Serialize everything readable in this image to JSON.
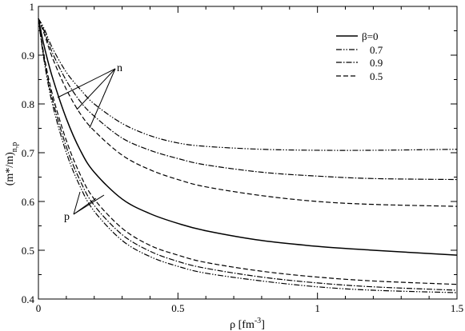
{
  "chart_data": {
    "type": "line",
    "xlabel": "ρ [fm",
    "xlabel_sup": "-3",
    "xlabel_end": "]",
    "ylabel": "(m*/m)",
    "ylabel_sub": "n,p",
    "xlim": [
      0,
      1.5
    ],
    "ylim": [
      0.4,
      1.0
    ],
    "xticks": [
      0,
      0.5,
      1,
      1.5
    ],
    "xtick_labels": [
      "0",
      "0.5",
      "1",
      "1.5"
    ],
    "yticks": [
      0.4,
      0.5,
      0.6,
      0.7,
      0.8,
      0.9,
      1.0
    ],
    "ytick_labels": [
      "0.4",
      "0.5",
      "0.6",
      "0.7",
      "0.8",
      "0.9",
      "1"
    ],
    "grid": false,
    "legend_position": "top-right",
    "legend": [
      {
        "label": "β=0",
        "style": "solid"
      },
      {
        "label": "0.7",
        "style": "dash-dot-dot"
      },
      {
        "label": "0.9",
        "style": "dash-dot"
      },
      {
        "label": "0.5",
        "style": "dashed"
      }
    ],
    "annotations": [
      {
        "text": "n",
        "points_to": "neutron curves (upper)"
      },
      {
        "text": "p",
        "points_to": "proton curves (lower)"
      }
    ],
    "series": [
      {
        "name": "β=0",
        "style": "solid",
        "group": "both",
        "x": [
          0.0,
          0.02,
          0.05,
          0.1,
          0.15,
          0.2,
          0.3,
          0.4,
          0.5,
          0.6,
          0.8,
          1.0,
          1.2,
          1.5
        ],
        "y": [
          0.975,
          0.92,
          0.855,
          0.77,
          0.705,
          0.66,
          0.605,
          0.575,
          0.555,
          0.54,
          0.52,
          0.508,
          0.5,
          0.49
        ]
      },
      {
        "name": "n, β=0.7",
        "style": "dash-dot-dot",
        "group": "n",
        "x": [
          0.0,
          0.02,
          0.05,
          0.1,
          0.15,
          0.2,
          0.3,
          0.4,
          0.5,
          0.6,
          0.8,
          1.0,
          1.2,
          1.5
        ],
        "y": [
          0.975,
          0.955,
          0.915,
          0.865,
          0.83,
          0.8,
          0.76,
          0.735,
          0.72,
          0.713,
          0.707,
          0.705,
          0.705,
          0.707
        ]
      },
      {
        "name": "n, β=0.9",
        "style": "dash-dot",
        "group": "n",
        "x": [
          0.0,
          0.02,
          0.05,
          0.1,
          0.15,
          0.2,
          0.3,
          0.4,
          0.5,
          0.6,
          0.8,
          1.0,
          1.2,
          1.5
        ],
        "y": [
          0.975,
          0.95,
          0.905,
          0.848,
          0.805,
          0.775,
          0.73,
          0.705,
          0.688,
          0.675,
          0.66,
          0.652,
          0.647,
          0.645
        ]
      },
      {
        "name": "n, β=0.5",
        "style": "dashed",
        "group": "n",
        "x": [
          0.0,
          0.02,
          0.05,
          0.1,
          0.15,
          0.2,
          0.3,
          0.4,
          0.5,
          0.6,
          0.8,
          1.0,
          1.2,
          1.5
        ],
        "y": [
          0.975,
          0.945,
          0.895,
          0.83,
          0.78,
          0.745,
          0.695,
          0.665,
          0.645,
          0.63,
          0.612,
          0.6,
          0.594,
          0.59
        ]
      },
      {
        "name": "p, β=0.5",
        "style": "dashed",
        "group": "p",
        "x": [
          0.0,
          0.02,
          0.05,
          0.1,
          0.15,
          0.2,
          0.3,
          0.4,
          0.5,
          0.6,
          0.8,
          1.0,
          1.2,
          1.5
        ],
        "y": [
          0.975,
          0.9,
          0.82,
          0.725,
          0.655,
          0.605,
          0.545,
          0.51,
          0.49,
          0.475,
          0.457,
          0.445,
          0.437,
          0.43
        ]
      },
      {
        "name": "p, β=0.9",
        "style": "dash-dot",
        "group": "p",
        "x": [
          0.0,
          0.02,
          0.05,
          0.1,
          0.15,
          0.2,
          0.3,
          0.4,
          0.5,
          0.6,
          0.8,
          1.0,
          1.2,
          1.5
        ],
        "y": [
          0.975,
          0.895,
          0.81,
          0.712,
          0.642,
          0.592,
          0.532,
          0.498,
          0.477,
          0.463,
          0.445,
          0.433,
          0.425,
          0.418
        ]
      },
      {
        "name": "p, β=0.7",
        "style": "dash-dot-dot",
        "group": "p",
        "x": [
          0.0,
          0.02,
          0.05,
          0.1,
          0.15,
          0.2,
          0.3,
          0.4,
          0.5,
          0.6,
          0.8,
          1.0,
          1.2,
          1.5
        ],
        "y": [
          0.975,
          0.89,
          0.8,
          0.7,
          0.63,
          0.58,
          0.52,
          0.487,
          0.467,
          0.453,
          0.437,
          0.425,
          0.418,
          0.413
        ]
      }
    ]
  }
}
